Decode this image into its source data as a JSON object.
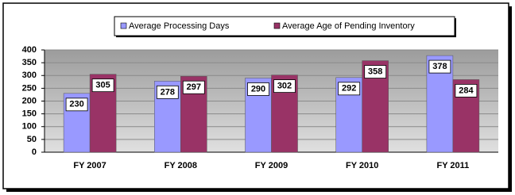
{
  "chart_data": {
    "type": "bar",
    "categories": [
      "FY 2007",
      "FY 2008",
      "FY 2009",
      "FY 2010",
      "FY 2011"
    ],
    "series": [
      {
        "name": "Average Processing Days",
        "color": "#9999ff",
        "values": [
          230,
          278,
          290,
          292,
          378
        ]
      },
      {
        "name": "Average Age of Pending Inventory",
        "color": "#993366",
        "values": [
          305,
          297,
          302,
          358,
          284
        ]
      }
    ],
    "ylim": [
      0,
      400
    ],
    "yticks": [
      0,
      50,
      100,
      150,
      200,
      250,
      300,
      350,
      400
    ],
    "grid": true
  }
}
